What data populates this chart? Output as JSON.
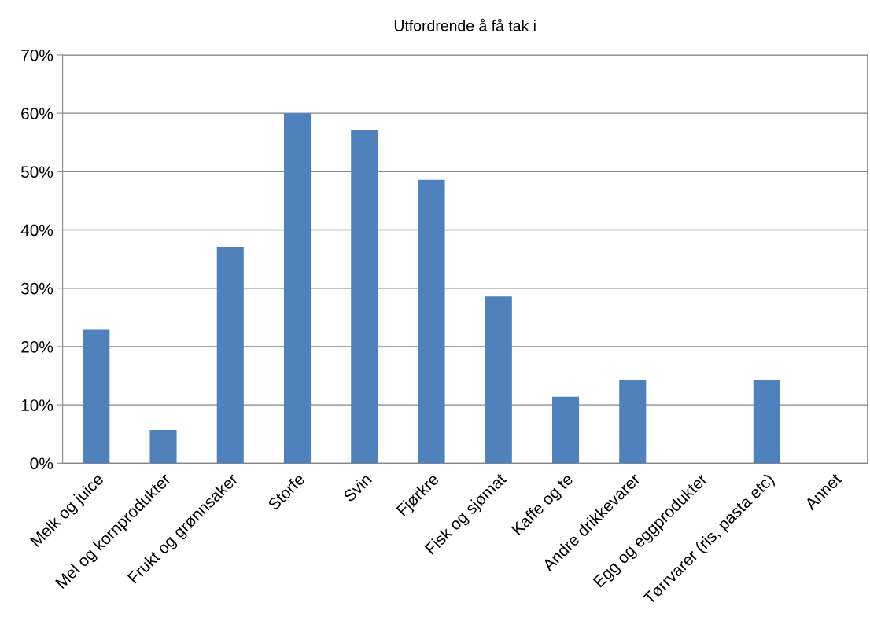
{
  "chart_data": {
    "type": "bar",
    "title": "Utfordrende å få tak i",
    "categories": [
      "Melk og juice",
      "Mel og kornprodukter",
      "Frukt og grønnsaker",
      "Storfe",
      "Svin",
      "Fjørkre",
      "Fisk og sjømat",
      "Kaffe og te",
      "Andre drikkevarer",
      "Egg og eggprodukter",
      "Tørrvarer (ris, pasta etc)",
      "Annet"
    ],
    "values": [
      22.9,
      5.7,
      37.1,
      60.0,
      57.1,
      48.6,
      28.6,
      11.4,
      14.3,
      0,
      14.3,
      0
    ],
    "color": "#4f81bd",
    "ylim": [
      0,
      70
    ],
    "yticks": [
      {
        "value": 0,
        "label": "0%"
      },
      {
        "value": 10,
        "label": "10%"
      },
      {
        "value": 20,
        "label": "20%"
      },
      {
        "value": 30,
        "label": "30%"
      },
      {
        "value": 40,
        "label": "40%"
      },
      {
        "value": 50,
        "label": "50%"
      },
      {
        "value": 60,
        "label": "60%"
      },
      {
        "value": 70,
        "label": "70%"
      }
    ],
    "grid": "y",
    "legend": false
  }
}
